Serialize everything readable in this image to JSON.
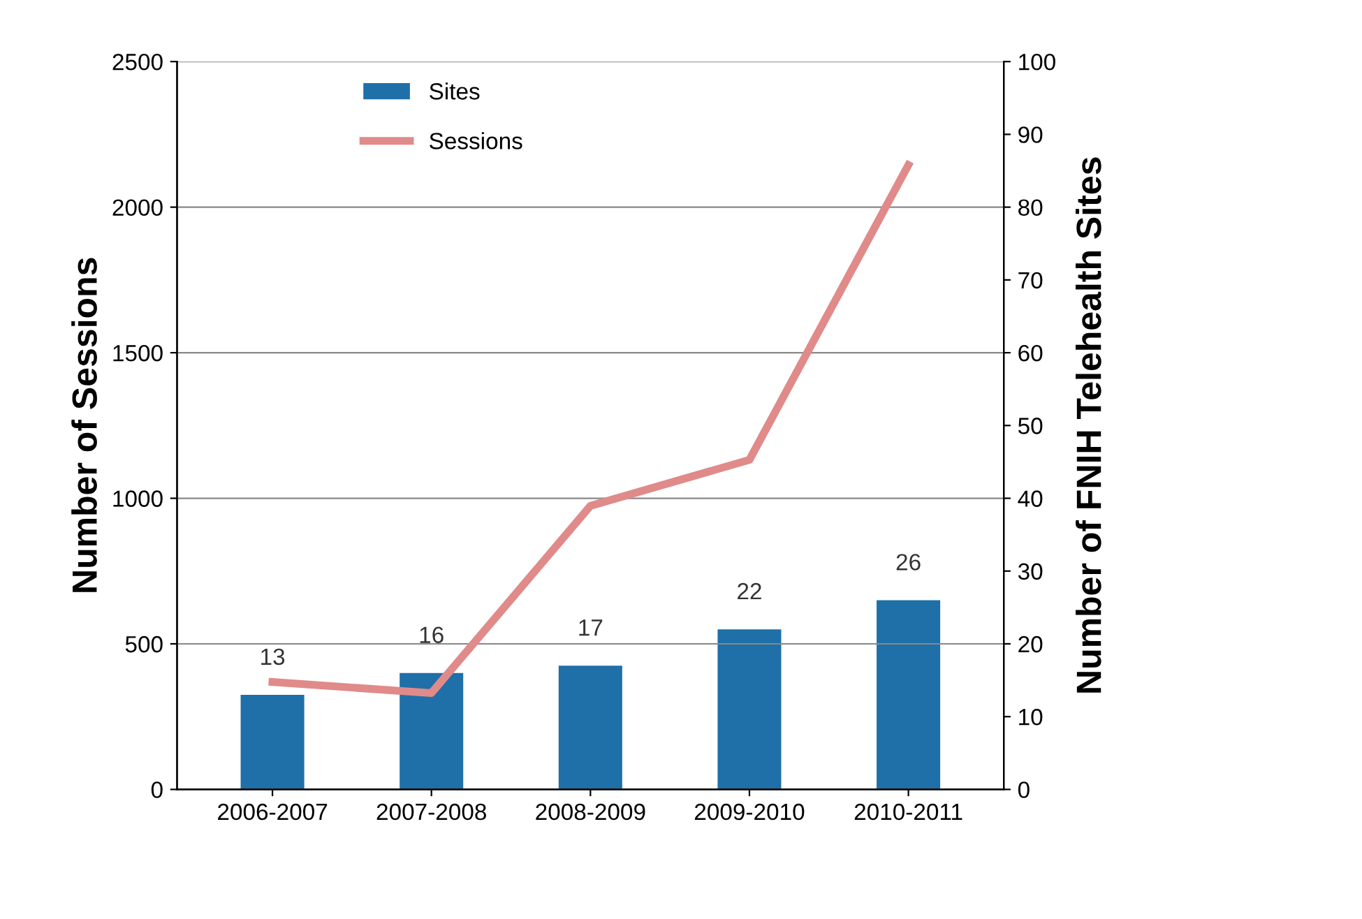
{
  "chart_data": {
    "type": "bar",
    "ylabel": "Number of Sessions",
    "y2label": "Number of FNIH Telehealth Sites",
    "categories": [
      "2006-2007",
      "2007-2008",
      "2008-2009",
      "2009-2010",
      "2010-2011"
    ],
    "series": [
      {
        "name": "Sites",
        "axis": "y2",
        "color": "#1f6fa8",
        "values": [
          13,
          16,
          17,
          22,
          26
        ],
        "value_labels": [
          "13",
          "16",
          "17",
          "22",
          "26"
        ]
      },
      {
        "name": "Sessions",
        "type": "line",
        "axis": "y",
        "color": "#e08a8a",
        "values": [
          369,
          331,
          974,
          1132,
          2145
        ]
      }
    ],
    "ylim": [
      0,
      2500
    ],
    "yticks": [
      0,
      500,
      1000,
      1500,
      2000,
      2500
    ],
    "y2lim": [
      0,
      100
    ],
    "y2ticks": [
      0,
      10,
      20,
      30,
      40,
      50,
      60,
      70,
      80,
      90,
      100
    ],
    "grid": "y",
    "legend": "top left",
    "marker": "none",
    "line_style": "solid"
  }
}
